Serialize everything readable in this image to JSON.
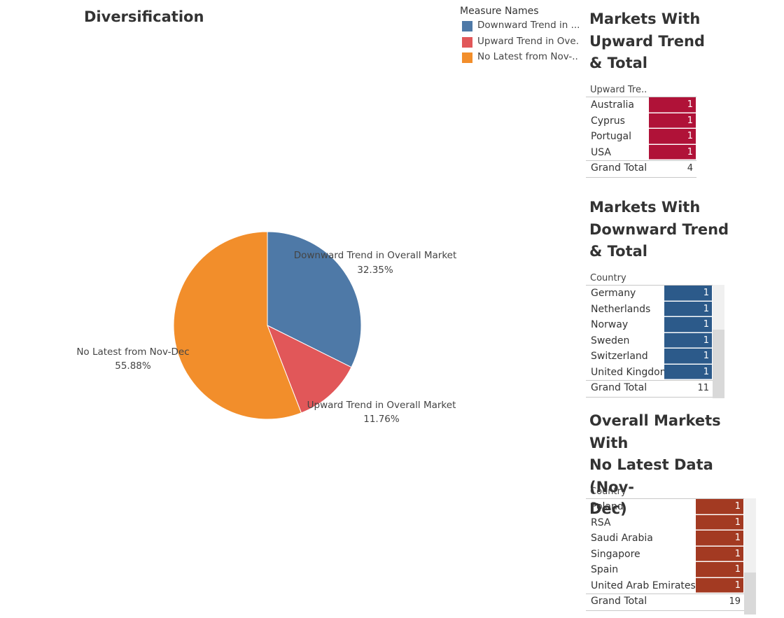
{
  "title": "Diversification",
  "legend": {
    "title": "Measure Names",
    "items": [
      {
        "label": "Downward Trend in ...",
        "color": "#4e79a7"
      },
      {
        "label": "Upward Trend in Ove...",
        "color": "#e15759"
      },
      {
        "label": "No Latest from Nov-...",
        "color": "#f28e2b"
      }
    ]
  },
  "chart_data": {
    "type": "pie",
    "title": "Diversification",
    "slices": [
      {
        "label": "Downward Trend in Overall Market",
        "value": 32.35,
        "display": "32.35%",
        "color": "#4e79a7"
      },
      {
        "label": "Upward Trend in Overall Market",
        "value": 11.76,
        "display": "11.76%",
        "color": "#e15759"
      },
      {
        "label": "No Latest from Nov-Dec",
        "value": 55.88,
        "display": "55.88%",
        "color": "#f28e2b"
      }
    ]
  },
  "upward": {
    "title_lines": [
      "Markets With",
      "Upward Trend",
      "& Total"
    ],
    "header": "Upward Tre..",
    "color": "#b01238",
    "rows": [
      {
        "name": "Australia",
        "value": "1"
      },
      {
        "name": "Cyprus",
        "value": "1"
      },
      {
        "name": "Portugal",
        "value": "1"
      },
      {
        "name": "USA",
        "value": "1"
      }
    ],
    "total_label": "Grand Total",
    "total": "4"
  },
  "downward": {
    "title_lines": [
      "Markets With",
      "Downward Trend",
      "& Total"
    ],
    "header": "Country",
    "color": "#2c5a8a",
    "rows": [
      {
        "name": "Germany",
        "value": "1"
      },
      {
        "name": "Netherlands",
        "value": "1"
      },
      {
        "name": "Norway",
        "value": "1"
      },
      {
        "name": "Sweden",
        "value": "1"
      },
      {
        "name": "Switzerland",
        "value": "1"
      },
      {
        "name": "United Kingdom",
        "value": "1"
      }
    ],
    "total_label": "Grand Total",
    "total": "11"
  },
  "nolatest": {
    "title_lines": [
      "Overall Markets With",
      "No Latest Data (Nov-",
      "Dec)"
    ],
    "header": "Country",
    "color": "#a33a22",
    "rows": [
      {
        "name": "Poland",
        "value": "1"
      },
      {
        "name": "RSA",
        "value": "1"
      },
      {
        "name": "Saudi Arabia",
        "value": "1"
      },
      {
        "name": "Singapore",
        "value": "1"
      },
      {
        "name": "Spain",
        "value": "1"
      },
      {
        "name": "United Arab Emirates",
        "value": "1"
      }
    ],
    "total_label": "Grand Total",
    "total": "19"
  }
}
